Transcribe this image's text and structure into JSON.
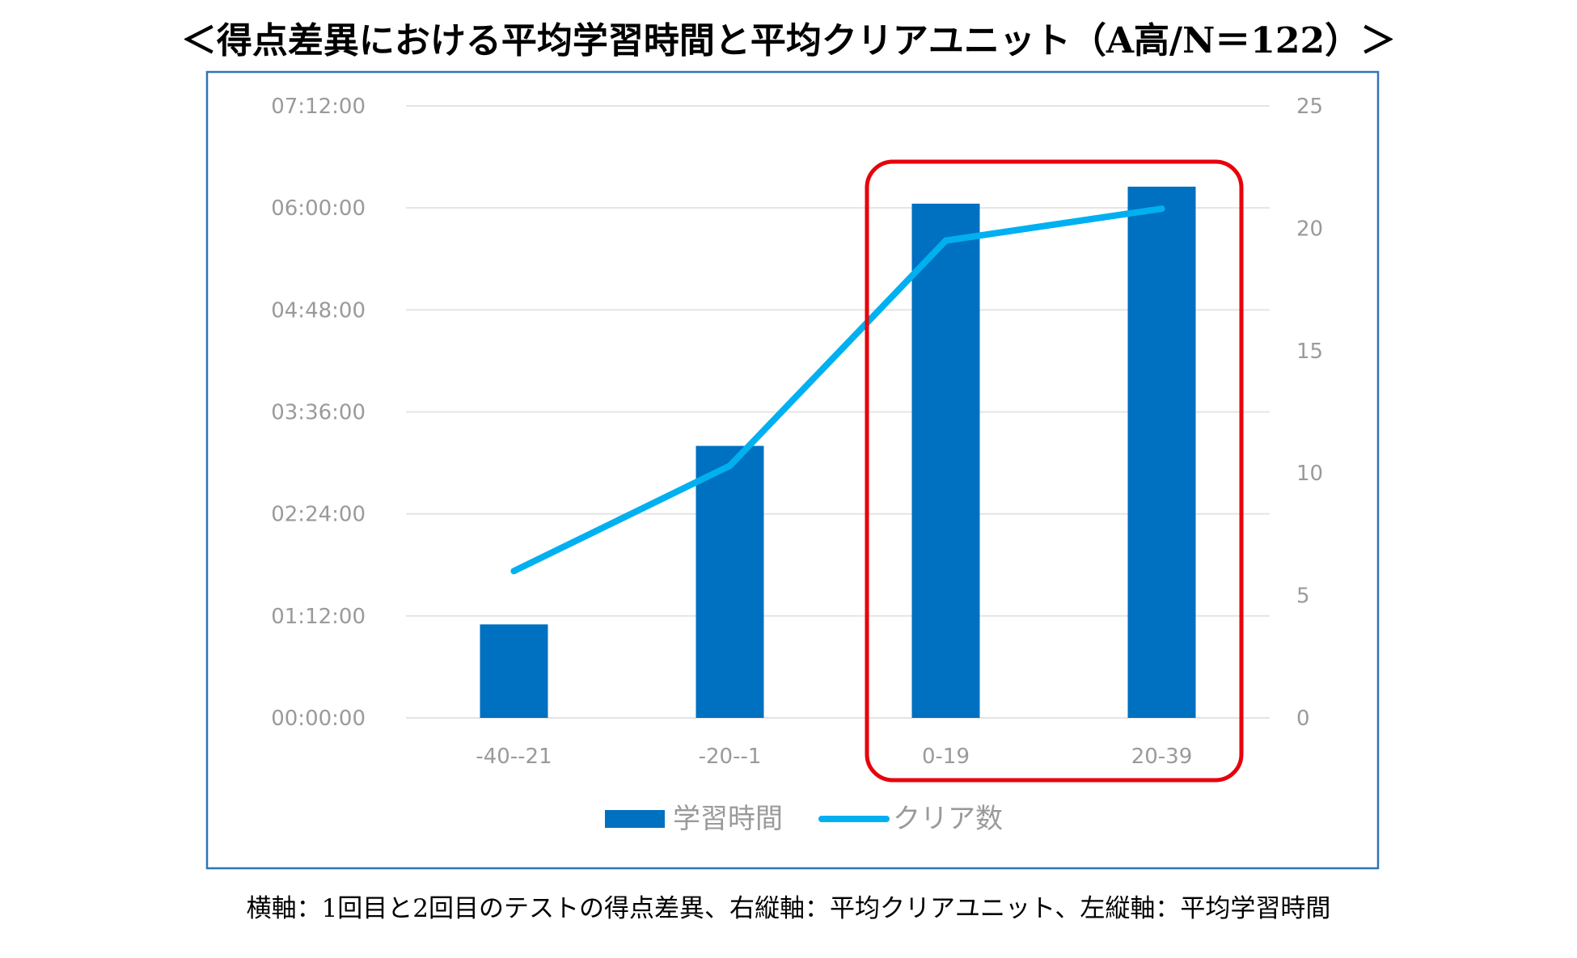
{
  "title": "＜得点差異における平均学習時間と平均クリアユニット（A高/N＝122）＞",
  "caption": "横軸：1回目と2回目のテストの得点差異、右縦軸：平均クリアユニット、左縦軸：平均学習時間",
  "colors": {
    "bar": "#0070c0",
    "line": "#00b0f0",
    "grid": "#e4e4e4",
    "frame": "#2e75b6",
    "highlight": "#e8000b",
    "tick_text": "#9a9a9a"
  },
  "chart_data": {
    "type": "bar",
    "categories": [
      "-40--21",
      "-20--1",
      "0-19",
      "20-39"
    ],
    "series": [
      {
        "name": "学習時間",
        "type": "bar",
        "axis": "left",
        "unit": "hours",
        "values": [
          1.1,
          3.2,
          6.05,
          6.25
        ]
      },
      {
        "name": "クリア数",
        "type": "line",
        "axis": "right",
        "values": [
          6.0,
          10.3,
          19.5,
          20.8
        ]
      }
    ],
    "y_left": {
      "min": 0,
      "max": 7.2,
      "tick_values": [
        0,
        1.2,
        2.4,
        3.6,
        4.8,
        6.0,
        7.2
      ],
      "tick_labels": [
        "00:00:00",
        "01:12:00",
        "02:24:00",
        "03:36:00",
        "04:48:00",
        "06:00:00",
        "07:12:00"
      ]
    },
    "y_right": {
      "min": 0,
      "max": 25,
      "tick_values": [
        0,
        5,
        10,
        15,
        20,
        25
      ],
      "tick_labels": [
        "0",
        "5",
        "10",
        "15",
        "20",
        "25"
      ]
    },
    "highlight_categories": [
      "0-19",
      "20-39"
    ],
    "legend": [
      "学習時間",
      "クリア数"
    ],
    "legend_position": "bottom",
    "grid": true
  }
}
